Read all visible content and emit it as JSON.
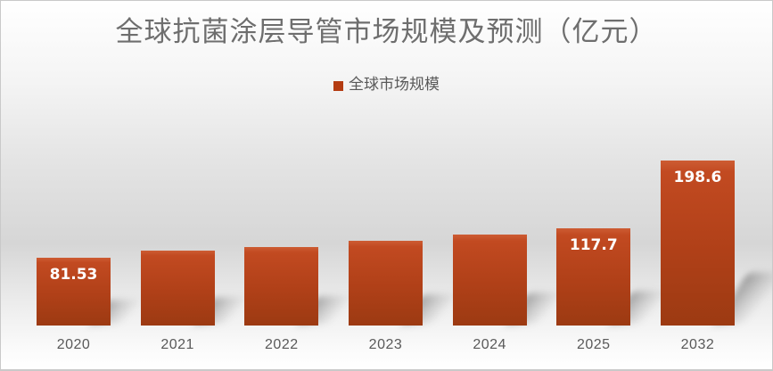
{
  "chart_data": {
    "type": "bar",
    "title": "全球抗菌涂层导管市场规模及预测（亿元）",
    "legend": [
      "全球市场规模"
    ],
    "legend_position": "top-center",
    "categories": [
      "2020",
      "2021",
      "2022",
      "2023",
      "2024",
      "2025",
      "2032"
    ],
    "series": [
      {
        "name": "全球市场规模",
        "values": [
          81.53,
          90,
          94.6,
          102,
          109.6,
          117.7,
          198.6
        ]
      }
    ],
    "data_labels": [
      "81.53",
      "",
      "",
      "",
      "",
      "117.7",
      "198.6"
    ],
    "ylim": [
      0,
      242
    ],
    "grid": false,
    "y_axis_visible": false,
    "colors": {
      "bar_top": "#c24a21",
      "bar_bottom": "#9c3a12",
      "legend_swatch": "#b43c12",
      "value_label": "#ffffff",
      "title_text": "#6e6e6e",
      "axis_text": "#595959"
    }
  }
}
